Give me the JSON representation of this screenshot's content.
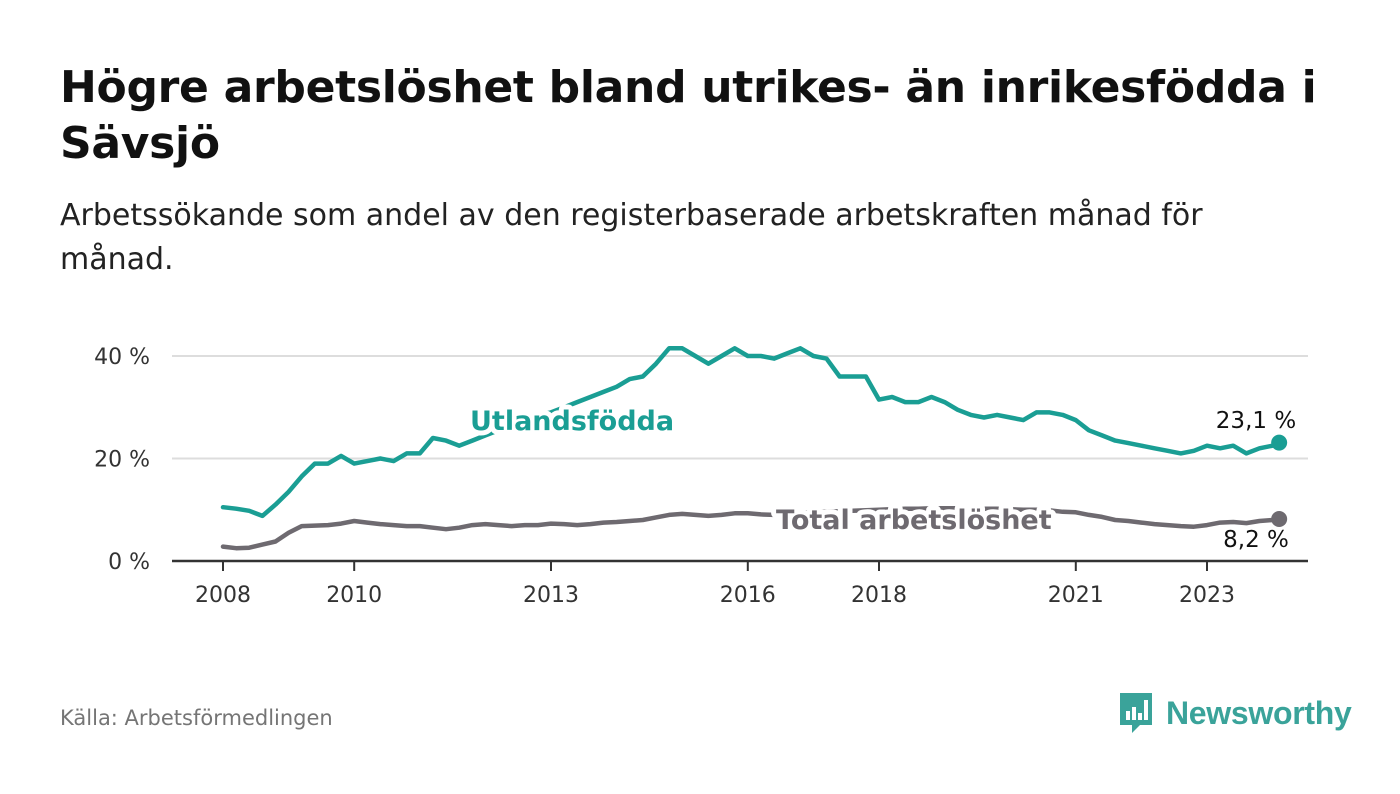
{
  "title": "Högre arbetslöshet bland utrikes- än inrikesfödda i Sävsjö",
  "subtitle": "Arbetssökande som andel av den registerbaserade arbetskraften månad för månad.",
  "source": "Källa: Arbetsförmedlingen",
  "brand": "Newsworthy",
  "colors": {
    "utlandsfodda": "#1a9e94",
    "total": "#6e6a70",
    "grid": "#dddddd",
    "axis": "#333333",
    "brand": "#3aa39a"
  },
  "chart_data": {
    "type": "line",
    "title": "Högre arbetslöshet bland utrikes- än inrikesfödda i Sävsjö",
    "xlabel": "",
    "ylabel": "",
    "x_range": [
      2007.3,
      2024.7
    ],
    "ylim": [
      0,
      45
    ],
    "y_ticks": [
      0,
      20,
      40
    ],
    "y_tick_labels": [
      "0 %",
      "20 %",
      "40 %"
    ],
    "x_ticks": [
      2008,
      2010,
      2013,
      2016,
      2018,
      2021,
      2023
    ],
    "x_tick_labels": [
      "2008",
      "2010",
      "2013",
      "2016",
      "2018",
      "2021",
      "2023"
    ],
    "grid": true,
    "series": [
      {
        "name": "Utlandsfödda",
        "label": "Utlandsfödda",
        "end_label": "23,1 %",
        "x": [
          2008.0,
          2008.2,
          2008.4,
          2008.6,
          2008.8,
          2009.0,
          2009.2,
          2009.4,
          2009.6,
          2009.8,
          2010.0,
          2010.2,
          2010.4,
          2010.6,
          2010.8,
          2011.0,
          2011.2,
          2011.4,
          2011.6,
          2011.8,
          2012.0,
          2012.2,
          2012.4,
          2012.6,
          2012.8,
          2013.0,
          2013.2,
          2013.4,
          2013.6,
          2013.8,
          2014.0,
          2014.2,
          2014.4,
          2014.6,
          2014.8,
          2015.0,
          2015.2,
          2015.4,
          2015.6,
          2015.8,
          2016.0,
          2016.2,
          2016.4,
          2016.6,
          2016.8,
          2017.0,
          2017.2,
          2017.4,
          2017.6,
          2017.8,
          2018.0,
          2018.2,
          2018.4,
          2018.6,
          2018.8,
          2019.0,
          2019.2,
          2019.4,
          2019.6,
          2019.8,
          2020.0,
          2020.2,
          2020.4,
          2020.6,
          2020.8,
          2021.0,
          2021.2,
          2021.4,
          2021.6,
          2021.8,
          2022.0,
          2022.2,
          2022.4,
          2022.6,
          2022.8,
          2023.0,
          2023.2,
          2023.4,
          2023.6,
          2023.8,
          2024.0,
          2024.1
        ],
        "values": [
          10.5,
          10.2,
          9.8,
          8.8,
          11.0,
          13.5,
          16.5,
          19.0,
          19.0,
          20.5,
          19.0,
          19.5,
          20.0,
          19.5,
          21.0,
          21.0,
          24.0,
          23.5,
          22.5,
          23.5,
          24.5,
          25.5,
          26.5,
          27.5,
          28.5,
          29.0,
          30.0,
          31.0,
          32.0,
          33.0,
          34.0,
          35.5,
          36.0,
          38.5,
          41.5,
          41.5,
          40.0,
          38.5,
          40.0,
          41.5,
          40.0,
          40.0,
          39.5,
          40.5,
          41.5,
          40.0,
          39.5,
          36.0,
          36.0,
          36.0,
          31.5,
          32.0,
          31.0,
          31.0,
          32.0,
          31.0,
          29.5,
          28.5,
          28.0,
          28.5,
          28.0,
          27.5,
          29.0,
          29.0,
          28.5,
          27.5,
          25.5,
          24.5,
          23.5,
          23.0,
          22.5,
          22.0,
          21.5,
          21.0,
          21.5,
          22.5,
          22.0,
          22.5,
          21.0,
          22.0,
          22.5,
          23.1
        ]
      },
      {
        "name": "Total arbetslöshet",
        "label": "Total arbetslöshet",
        "end_label": "8,2 %",
        "x": [
          2008.0,
          2008.2,
          2008.4,
          2008.6,
          2008.8,
          2009.0,
          2009.2,
          2009.4,
          2009.6,
          2009.8,
          2010.0,
          2010.2,
          2010.4,
          2010.6,
          2010.8,
          2011.0,
          2011.2,
          2011.4,
          2011.6,
          2011.8,
          2012.0,
          2012.2,
          2012.4,
          2012.6,
          2012.8,
          2013.0,
          2013.2,
          2013.4,
          2013.6,
          2013.8,
          2014.0,
          2014.2,
          2014.4,
          2014.6,
          2014.8,
          2015.0,
          2015.2,
          2015.4,
          2015.6,
          2015.8,
          2016.0,
          2016.2,
          2016.4,
          2016.6,
          2016.8,
          2017.0,
          2017.2,
          2017.4,
          2017.6,
          2017.8,
          2018.0,
          2018.2,
          2018.4,
          2018.6,
          2018.8,
          2019.0,
          2019.2,
          2019.4,
          2019.6,
          2019.8,
          2020.0,
          2020.2,
          2020.4,
          2020.6,
          2020.8,
          2021.0,
          2021.2,
          2021.4,
          2021.6,
          2021.8,
          2022.0,
          2022.2,
          2022.4,
          2022.6,
          2022.8,
          2023.0,
          2023.2,
          2023.4,
          2023.6,
          2023.8,
          2024.0,
          2024.1
        ],
        "values": [
          2.8,
          2.5,
          2.6,
          3.2,
          3.8,
          5.5,
          6.8,
          6.9,
          7.0,
          7.3,
          7.8,
          7.5,
          7.2,
          7.0,
          6.8,
          6.8,
          6.5,
          6.2,
          6.5,
          7.0,
          7.2,
          7.0,
          6.8,
          7.0,
          7.0,
          7.3,
          7.2,
          7.0,
          7.2,
          7.5,
          7.6,
          7.8,
          8.0,
          8.5,
          9.0,
          9.2,
          9.0,
          8.8,
          9.0,
          9.3,
          9.3,
          9.1,
          9.0,
          9.2,
          9.4,
          9.5,
          9.6,
          9.7,
          9.8,
          9.9,
          10.0,
          10.1,
          10.2,
          10.2,
          10.3,
          10.3,
          10.3,
          10.3,
          10.2,
          10.2,
          10.1,
          10.0,
          10.0,
          9.9,
          9.6,
          9.5,
          9.0,
          8.6,
          8.0,
          7.8,
          7.5,
          7.2,
          7.0,
          6.8,
          6.7,
          7.0,
          7.5,
          7.6,
          7.4,
          7.8,
          8.0,
          8.2
        ]
      }
    ]
  }
}
